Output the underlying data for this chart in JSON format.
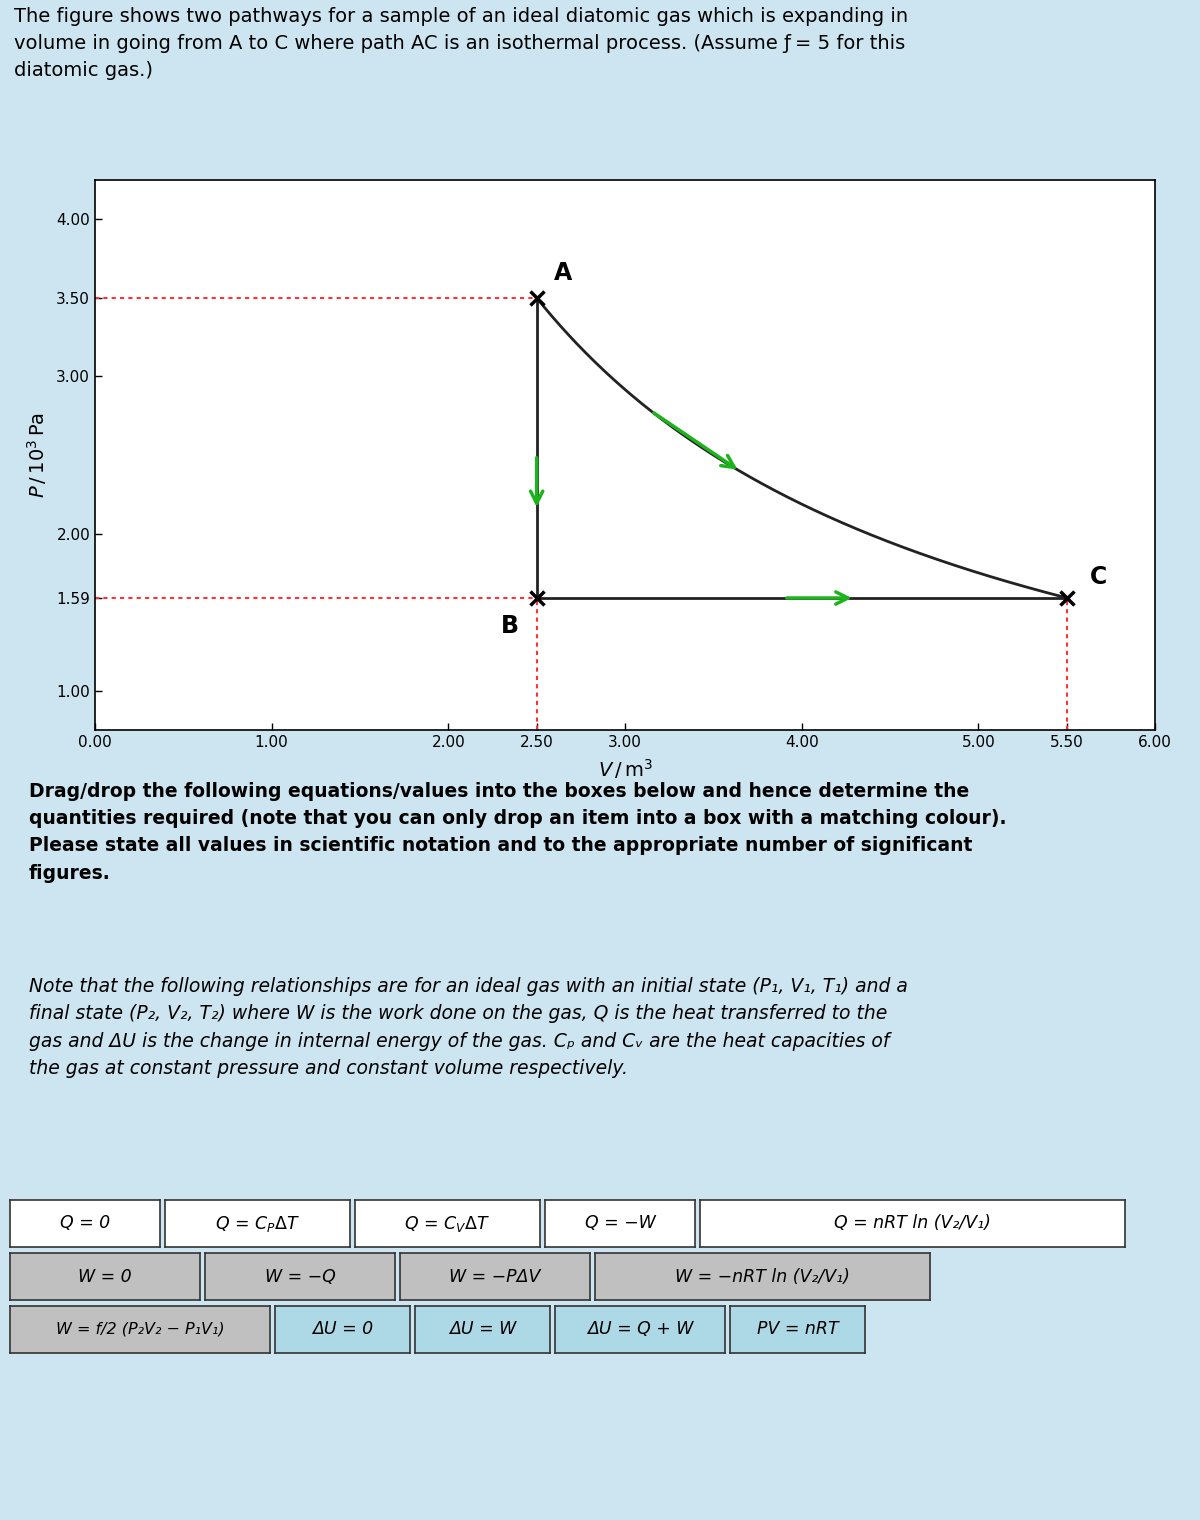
{
  "title_text": "The figure shows two pathways for a sample of an ideal diatomic gas which is expanding in\nvolume in going from A to C where path AC is an isothermal process. (Assume ƒ = 5 for this\ndiatomic gas.)",
  "A": [
    2.5,
    3.5
  ],
  "B": [
    2.5,
    1.59
  ],
  "C": [
    5.5,
    1.59
  ],
  "xlim": [
    0.0,
    6.0
  ],
  "ylim": [
    0.75,
    4.25
  ],
  "xtick_vals": [
    0.0,
    1.0,
    2.0,
    2.5,
    3.0,
    4.0,
    5.0,
    5.5,
    6.0
  ],
  "xtick_labels": [
    "0.00",
    "1.00",
    "2.00",
    "2.50",
    "3.00",
    "4.00",
    "5.00",
    "5.50",
    "6.00"
  ],
  "ytick_vals": [
    1.0,
    1.59,
    2.0,
    3.0,
    3.5,
    4.0
  ],
  "ytick_labels": [
    "1.00",
    "1.59",
    "2.00",
    "3.00",
    "3.50",
    "4.00"
  ],
  "bg_color": "#cce5f0",
  "plot_bg": "#ffffff",
  "curve_color": "#222222",
  "arrow_color": "#1db31d",
  "dash_color": "#ff3333",
  "body_text": "Drag/drop the following equations/values into the boxes below and hence determine the\nquantities required (note that you can only drop an item into a box with a matching colour).\nPlease state all values in scientific notation and to the appropriate number of significant\nfigures.",
  "note_text": "Note that the following relationships are for an ideal gas with an initial state (P₁, V₁, T₁) and a\nfinal state (P₂, V₂, T₂) where W is the work done on the gas, Q is the heat transferred to the\ngas and ΔU is the change in internal energy of the gas. Cₚ and Cᵥ are the heat capacities of\nthe gas at constant pressure and constant volume respectively.",
  "row1_boxes": [
    {
      "label": "Q = 0",
      "bg": "#ffffff"
    },
    {
      "label": "Q = C$_P$$\\Delta$T",
      "bg": "#ffffff"
    },
    {
      "label": "Q = C$_V$$\\Delta$T",
      "bg": "#ffffff"
    },
    {
      "label": "Q = −W",
      "bg": "#ffffff"
    },
    {
      "label": "Q = nRT ln (V₂/V₁)",
      "bg": "#ffffff"
    }
  ],
  "row2_boxes": [
    {
      "label": "W = 0",
      "bg": "#c0c0c0"
    },
    {
      "label": "W = −Q",
      "bg": "#c0c0c0"
    },
    {
      "label": "W = −PΔV",
      "bg": "#c0c0c0"
    },
    {
      "label": "W = −nRT ln (V₂/V₁)",
      "bg": "#c0c0c0"
    }
  ],
  "row3_left": {
    "label": "W = f/2 (P₂V₂ − P₁V₁)",
    "bg": "#c0c0c0"
  },
  "row3_right": [
    {
      "label": "ΔU = 0",
      "bg": "#add8e6"
    },
    {
      "label": "ΔU = W",
      "bg": "#add8e6"
    },
    {
      "label": "ΔU = Q + W",
      "bg": "#add8e6"
    },
    {
      "label": "PV = nRT",
      "bg": "#add8e6"
    }
  ]
}
